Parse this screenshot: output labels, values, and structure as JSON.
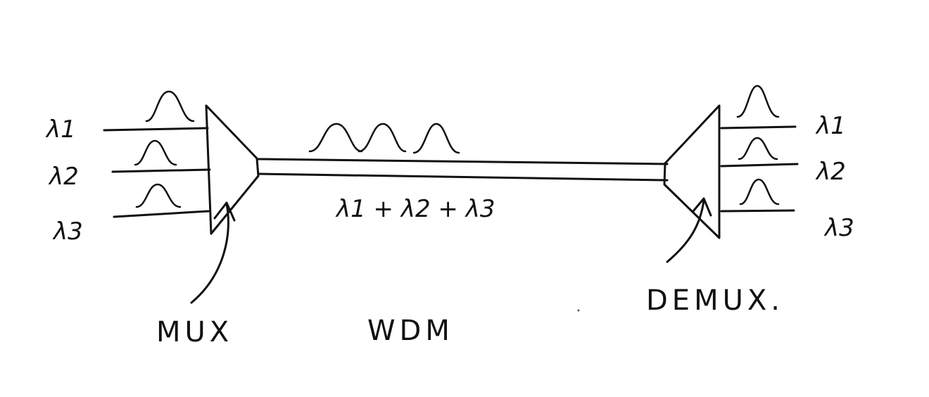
{
  "inputs": [
    {
      "label": "λ1"
    },
    {
      "label": "λ2"
    },
    {
      "label": "λ3"
    }
  ],
  "outputs": [
    {
      "label": "λ1"
    },
    {
      "label": "λ2"
    },
    {
      "label": "λ3"
    }
  ],
  "fiber_label": "λ1 + λ2 + λ3",
  "mux_label": "MUX",
  "wdm_label": "WDM",
  "demux_label": "DEMUX.",
  "colors": {
    "ink": "#111111",
    "paper": "#ffffff"
  }
}
